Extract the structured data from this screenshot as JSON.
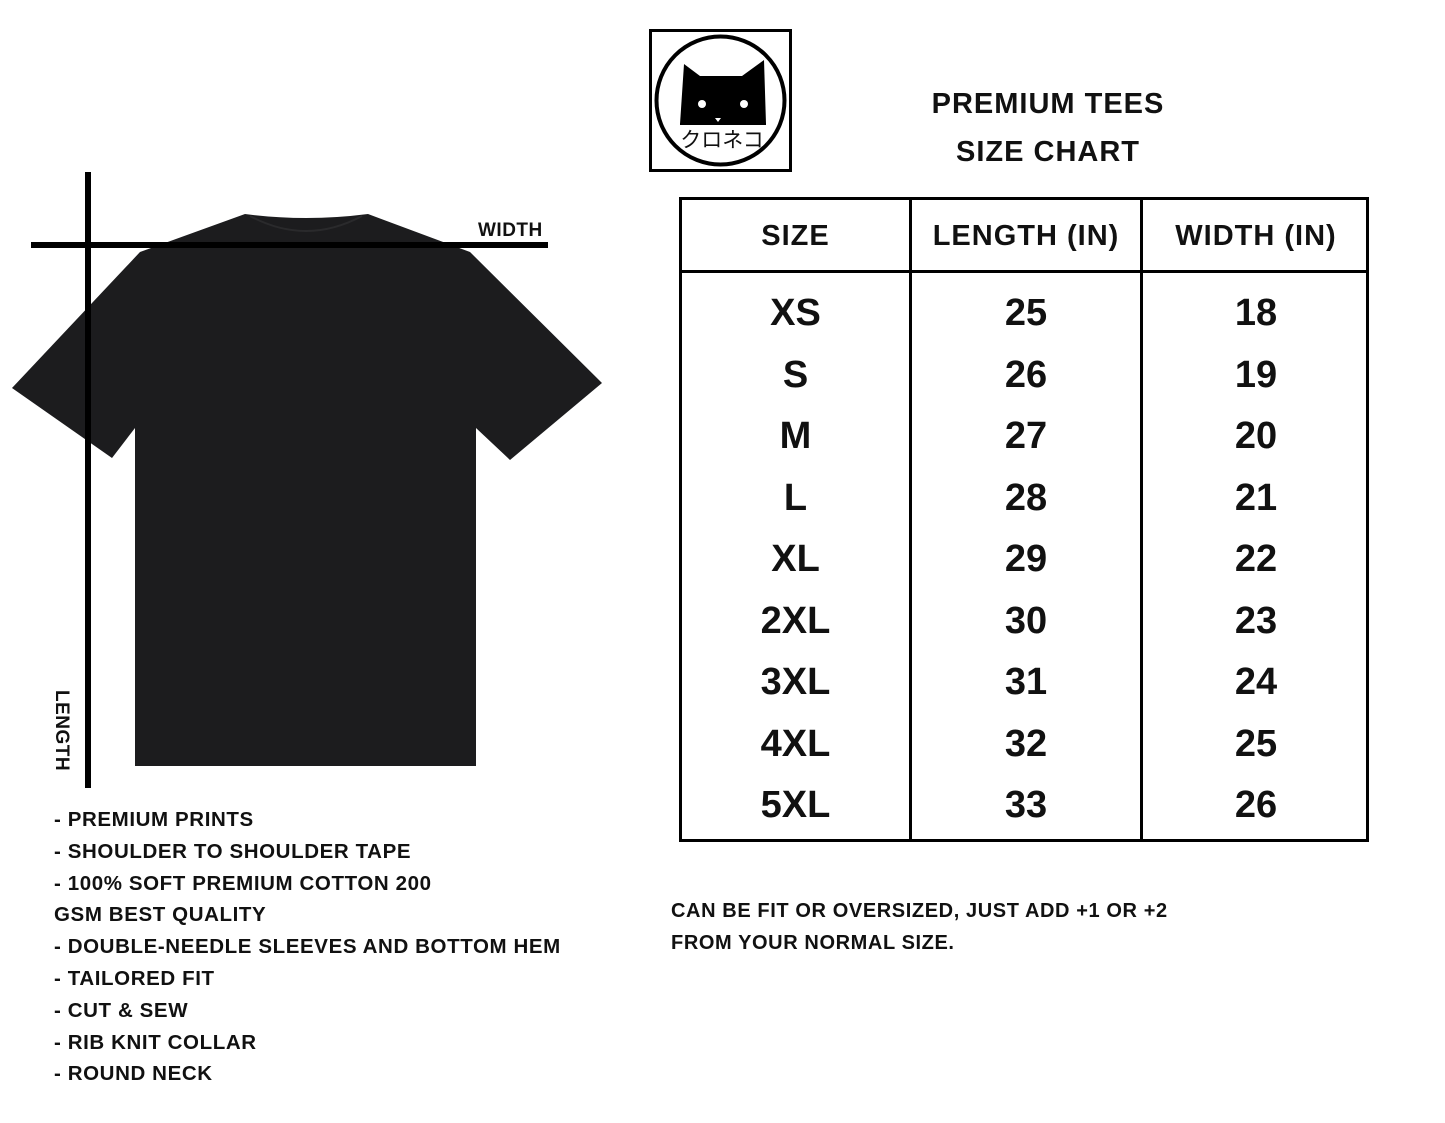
{
  "title": {
    "line1": "PREMIUM TEES",
    "line2": "SIZE CHART"
  },
  "logo": {
    "text": "クロネコ",
    "icon": "black-cat-logo"
  },
  "diagram": {
    "width_label": "WIDTH",
    "length_label": "LENGTH",
    "shirt_color": "#1c1c1e"
  },
  "table": {
    "headers": [
      "SIZE",
      "LENGTH (IN)",
      "WIDTH (IN)"
    ],
    "rows": [
      [
        "XS",
        "25",
        "18"
      ],
      [
        "S",
        "26",
        "19"
      ],
      [
        "M",
        "27",
        "20"
      ],
      [
        "L",
        "28",
        "21"
      ],
      [
        "XL",
        "29",
        "22"
      ],
      [
        "2XL",
        "30",
        "23"
      ],
      [
        "3XL",
        "31",
        "24"
      ],
      [
        "4XL",
        "32",
        "25"
      ],
      [
        "5XL",
        "33",
        "26"
      ]
    ]
  },
  "features": [
    "- Premium Prints",
    "- Shoulder to shoulder tape",
    "- 100% soft premium cotton 200",
    "GSM best quality",
    "- Double-needle sleeves and bottom hem",
    "- Tailored fit",
    "- Cut & Sew",
    "- Rib knit collar",
    "- Round neck"
  ],
  "note": {
    "line1": "Can be fit or oversized, just add +1 or +2",
    "line2": "from your normal size."
  }
}
